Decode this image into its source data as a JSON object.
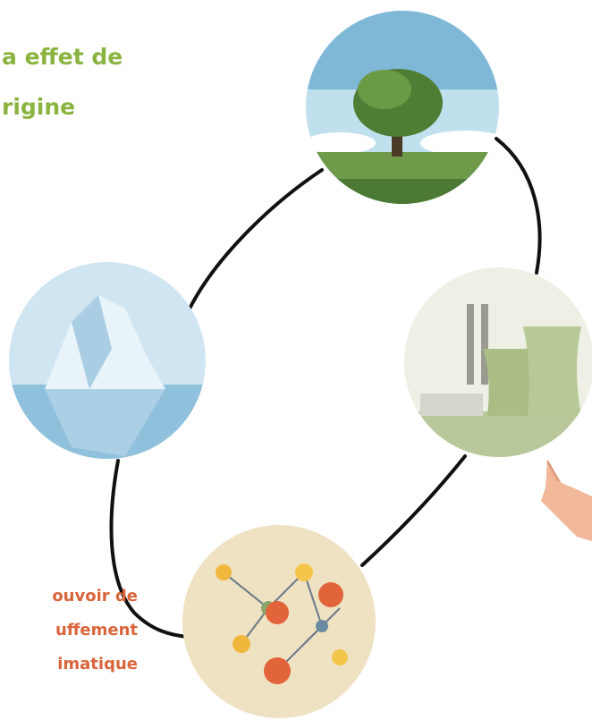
{
  "heading": {
    "lines": [
      "a effet de",
      "rigine"
    ]
  },
  "caption": {
    "lines": [
      "ouvoir de",
      "uffement",
      "imatique"
    ]
  }
}
